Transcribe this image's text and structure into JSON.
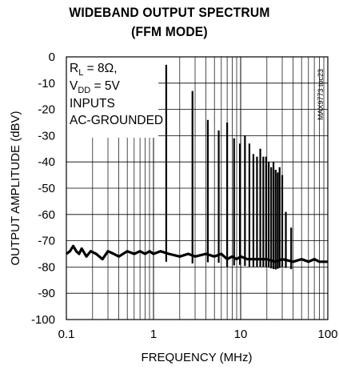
{
  "chart_data": {
    "type": "line",
    "title": "WIDEBAND OUTPUT SPECTRUM",
    "subtitle": "(FFM MODE)",
    "xlabel": "FREQUENCY (MHz)",
    "ylabel": "OUTPUT AMPLITUDE (dBV)",
    "x_scale": "log",
    "xlim": [
      0.1,
      100
    ],
    "ylim": [
      -100,
      0
    ],
    "x_ticks": [
      "0.1",
      "1",
      "10",
      "100"
    ],
    "y_ticks": [
      "0",
      "-10",
      "-20",
      "-30",
      "-40",
      "-50",
      "-60",
      "-70",
      "-80",
      "-90",
      "-100"
    ],
    "grid": true,
    "annotation": {
      "rl_prefix": "R",
      "rl_sub": "L",
      "rl_value": " = 8Ω,",
      "vdd_prefix": "V",
      "vdd_sub": "DD",
      "vdd_value": " = 5V",
      "line3": "INPUTS",
      "line4": "AC-GROUNDED"
    },
    "figure_id": "MAX9773 toc23",
    "noise_floor": [
      [
        0.1,
        -75
      ],
      [
        0.11,
        -74
      ],
      [
        0.12,
        -72
      ],
      [
        0.13,
        -74
      ],
      [
        0.14,
        -75
      ],
      [
        0.15,
        -73
      ],
      [
        0.17,
        -76
      ],
      [
        0.19,
        -74
      ],
      [
        0.22,
        -75
      ],
      [
        0.26,
        -77
      ],
      [
        0.3,
        -74
      ],
      [
        0.35,
        -75
      ],
      [
        0.4,
        -76
      ],
      [
        0.5,
        -74
      ],
      [
        0.6,
        -75
      ],
      [
        0.7,
        -74
      ],
      [
        0.8,
        -75
      ],
      [
        0.9,
        -74
      ],
      [
        1.0,
        -75
      ],
      [
        1.2,
        -74
      ],
      [
        1.5,
        -75
      ],
      [
        2.0,
        -76
      ],
      [
        2.5,
        -75
      ],
      [
        3.0,
        -76
      ],
      [
        4.0,
        -75
      ],
      [
        5.0,
        -76
      ],
      [
        6.0,
        -75
      ],
      [
        7.0,
        -77
      ],
      [
        8.0,
        -76
      ],
      [
        9.0,
        -77
      ],
      [
        10.0,
        -76
      ],
      [
        12.0,
        -77
      ],
      [
        15.0,
        -77
      ],
      [
        20.0,
        -77
      ],
      [
        25.0,
        -78
      ],
      [
        30.0,
        -77
      ],
      [
        40.0,
        -78
      ],
      [
        50.0,
        -77
      ],
      [
        60.0,
        -78
      ],
      [
        70.0,
        -77
      ],
      [
        80.0,
        -78
      ],
      [
        90.0,
        -78
      ],
      [
        100.0,
        -78
      ]
    ],
    "spurs": [
      {
        "f": 1.4,
        "peak": -3
      },
      {
        "f": 2.8,
        "peak": -13
      },
      {
        "f": 4.2,
        "peak": -24
      },
      {
        "f": 5.6,
        "peak": -28
      },
      {
        "f": 7.0,
        "peak": -25
      },
      {
        "f": 8.4,
        "peak": -31
      },
      {
        "f": 9.8,
        "peak": -33
      },
      {
        "f": 11.2,
        "peak": -30
      },
      {
        "f": 12.6,
        "peak": -33
      },
      {
        "f": 14.0,
        "peak": -37
      },
      {
        "f": 15.4,
        "peak": -38
      },
      {
        "f": 16.8,
        "peak": -35
      },
      {
        "f": 18.2,
        "peak": -38
      },
      {
        "f": 19.6,
        "peak": -38
      },
      {
        "f": 21.0,
        "peak": -40
      },
      {
        "f": 22.4,
        "peak": -42
      },
      {
        "f": 23.8,
        "peak": -40
      },
      {
        "f": 25.2,
        "peak": -43
      },
      {
        "f": 26.6,
        "peak": -44
      },
      {
        "f": 28.0,
        "peak": -42
      },
      {
        "f": 30.0,
        "peak": -45
      },
      {
        "f": 33.0,
        "peak": -59
      },
      {
        "f": 38.0,
        "peak": -65
      }
    ]
  }
}
